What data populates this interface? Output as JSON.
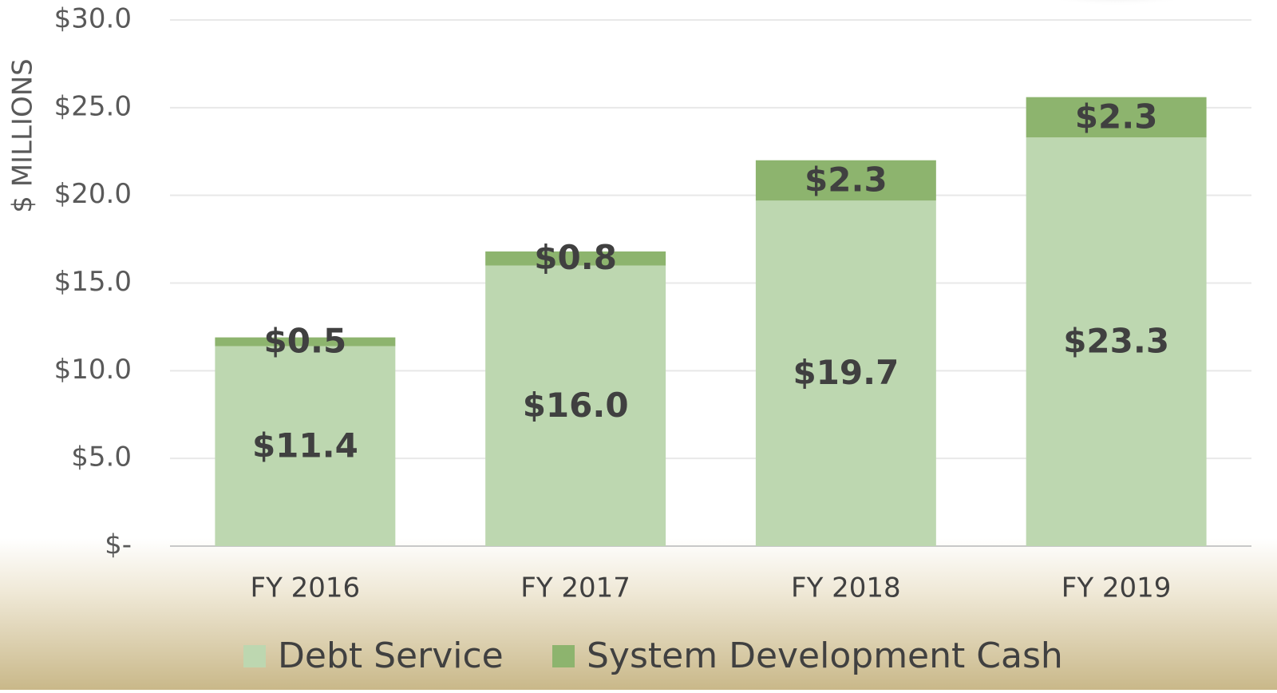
{
  "chart_data": {
    "type": "bar",
    "stacked": true,
    "y_label": "$ MILLIONS",
    "categories": [
      "FY 2016",
      "FY 2017",
      "FY 2018",
      "FY 2019"
    ],
    "series": [
      {
        "name": "Debt Service",
        "color": "#bdd7b0",
        "values": [
          11.4,
          16.0,
          19.7,
          23.3
        ],
        "value_labels": [
          "$11.4",
          "$16.0",
          "$19.7",
          "$23.3"
        ]
      },
      {
        "name": "System Development Cash",
        "color": "#8db46e",
        "values": [
          0.5,
          0.8,
          2.3,
          2.3
        ],
        "value_labels": [
          "$0.5",
          "$0.8",
          "$2.3",
          "$2.3"
        ]
      }
    ],
    "ylim": [
      0,
      30
    ],
    "yticks": [
      {
        "value": 0,
        "label": "$-"
      },
      {
        "value": 5,
        "label": "$5.0"
      },
      {
        "value": 10,
        "label": "$10.0"
      },
      {
        "value": 15,
        "label": "$15.0"
      },
      {
        "value": 20,
        "label": "$20.0"
      },
      {
        "value": 25,
        "label": "$25.0"
      },
      {
        "value": 30,
        "label": "$30.0"
      }
    ],
    "grid": true,
    "legend": "bottom"
  }
}
